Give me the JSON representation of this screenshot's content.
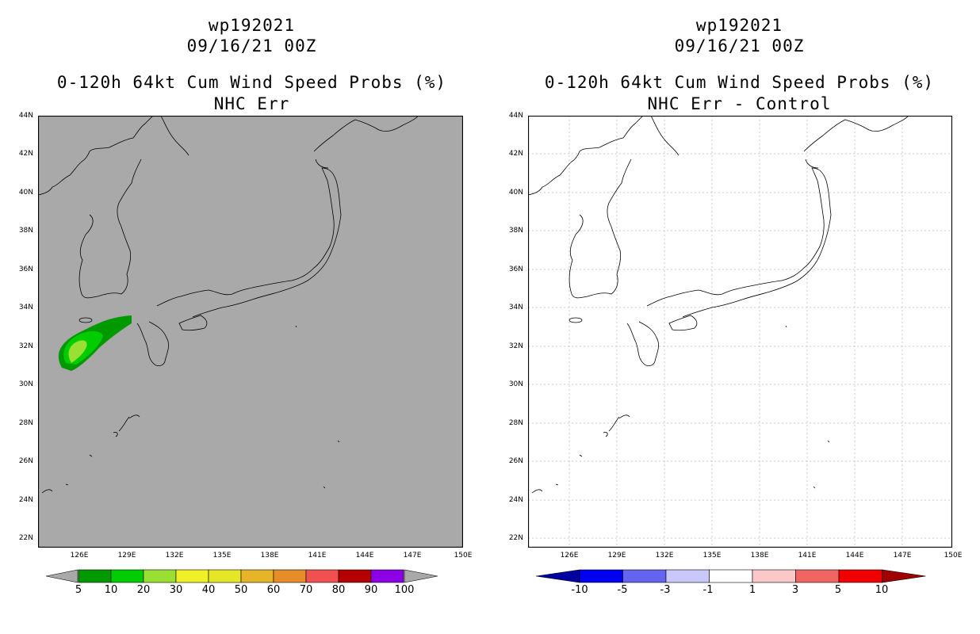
{
  "left_panel": {
    "title_line1": "wp192021",
    "title_line2": "09/16/21 00Z",
    "title_line3": "0-120h 64kt Cum Wind Speed Probs (%)",
    "title_line4": "NHC Err",
    "background_color": "#a9a9a9",
    "colorbar": {
      "labels": [
        "5",
        "10",
        "20",
        "30",
        "40",
        "50",
        "60",
        "70",
        "80",
        "90",
        "100"
      ],
      "colors": [
        "#009900",
        "#00cc00",
        "#99e033",
        "#f0f028",
        "#e6e628",
        "#e6b428",
        "#e68c28",
        "#f05050",
        "#b40000",
        "#8c00e6"
      ],
      "end_color": "#a9a9a9"
    }
  },
  "right_panel": {
    "title_line1": "wp192021",
    "title_line2": "09/16/21 00Z",
    "title_line3": "0-120h 64kt Cum Wind Speed Probs (%)",
    "title_line4": "NHC Err - Control",
    "background_color": "#ffffff",
    "colorbar": {
      "labels": [
        "-10",
        "-5",
        "-3",
        "-1",
        "1",
        "3",
        "5",
        "10"
      ],
      "colors": [
        "#0000a0",
        "#0000f0",
        "#6464f0",
        "#c8c8fa",
        "#ffffff",
        "#fac8c8",
        "#f06464",
        "#f00000",
        "#a00000"
      ]
    }
  },
  "axes": {
    "lat_labels": [
      "44N",
      "42N",
      "40N",
      "38N",
      "36N",
      "34N",
      "32N",
      "30N",
      "28N",
      "26N",
      "24N",
      "22N"
    ],
    "lon_labels": [
      "126E",
      "129E",
      "132E",
      "135E",
      "138E",
      "141E",
      "144E",
      "147E",
      "150E"
    ]
  },
  "probability_field": {
    "levels_percent": [
      5,
      10,
      20
    ],
    "colors": [
      "#009900",
      "#00cc00",
      "#99e033"
    ]
  }
}
